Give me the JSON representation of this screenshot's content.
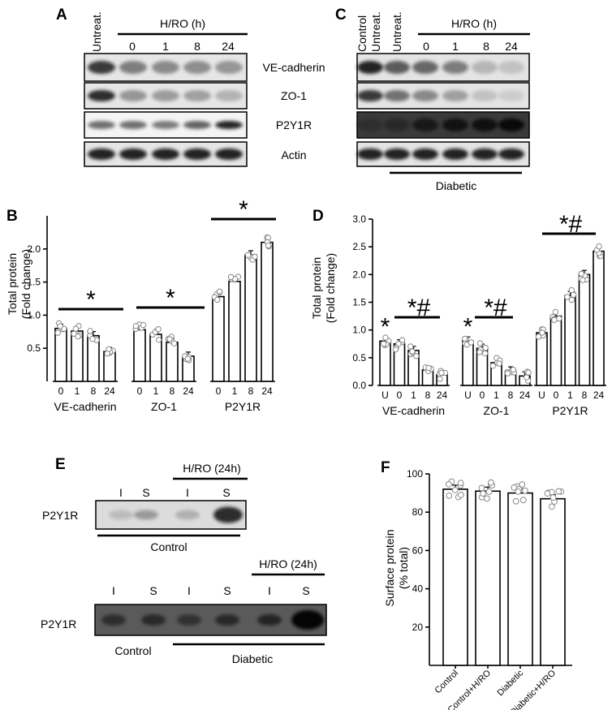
{
  "panels": {
    "A": "A",
    "B": "B",
    "C": "C",
    "D": "D",
    "E": "E",
    "F": "F"
  },
  "blot_A": {
    "lane_untreated": "Untreat.",
    "group_label": "H/RO (h)",
    "times": [
      "0",
      "1",
      "8",
      "24"
    ],
    "rows": [
      "VE-cadherin",
      "ZO-1",
      "P2Y1R",
      "Actin"
    ]
  },
  "blot_C": {
    "lane_control": "Control",
    "lane_untreated_1": "Untreat.",
    "lane_untreated_2": "Untreat.",
    "group_label": "H/RO (h)",
    "times": [
      "0",
      "1",
      "8",
      "24"
    ],
    "bottom_label": "Diabetic"
  },
  "blot_E": {
    "row_label": "P2Y1R",
    "top_group": "H/RO (24h)",
    "top_lanes": [
      "I",
      "S",
      "I",
      "S"
    ],
    "top_underline": "Control",
    "bottom_group": "H/RO (24h)",
    "bottom_lanes": [
      "I",
      "S",
      "I",
      "S",
      "I",
      "S"
    ],
    "bottom_row_label": "P2Y1R",
    "bottom_control": "Control",
    "bottom_diabetic": "Diabetic"
  },
  "chart_data": [
    {
      "panel": "B",
      "type": "bar",
      "ylabel": "Total protein (Fold change)",
      "ylabel_lines": [
        "Total protein",
        "(Fold change)"
      ],
      "ylim": [
        0,
        2.5
      ],
      "yticks": [
        "0.5",
        "1.0",
        "1.5",
        "2.0"
      ],
      "groups": [
        {
          "name": "VE-cadherin",
          "categories": [
            "0",
            "1",
            "8",
            "24"
          ],
          "values": [
            0.8,
            0.76,
            0.69,
            0.45
          ],
          "sig": "*"
        },
        {
          "name": "ZO-1",
          "categories": [
            "0",
            "1",
            "8",
            "24"
          ],
          "values": [
            0.78,
            0.71,
            0.59,
            0.38
          ],
          "sig": "*"
        },
        {
          "name": "P2Y1R",
          "categories": [
            "0",
            "1",
            "8",
            "24"
          ],
          "values": [
            1.28,
            1.51,
            1.91,
            2.1
          ],
          "sig": "*"
        }
      ]
    },
    {
      "panel": "D",
      "type": "bar",
      "ylabel": "Total protein (Fold change)",
      "ylabel_lines": [
        "Total protein",
        "(Fold change)"
      ],
      "ylim": [
        0,
        3.0
      ],
      "yticks": [
        "0.0",
        "0.5",
        "1.0",
        "1.5",
        "2.0",
        "2.5",
        "3.0"
      ],
      "groups": [
        {
          "name": "VE-cadherin",
          "categories": [
            "U",
            "0",
            "1",
            "8",
            "24"
          ],
          "values": [
            0.8,
            0.75,
            0.63,
            0.28,
            0.19
          ],
          "sig": "*#",
          "u_sig": "*"
        },
        {
          "name": "ZO-1",
          "categories": [
            "U",
            "0",
            "1",
            "8",
            "24"
          ],
          "values": [
            0.8,
            0.67,
            0.41,
            0.26,
            0.17
          ],
          "sig": "*#",
          "u_sig": "*"
        },
        {
          "name": "P2Y1R",
          "categories": [
            "U",
            "0",
            "1",
            "8",
            "24"
          ],
          "values": [
            0.95,
            1.25,
            1.62,
            2.0,
            2.42
          ],
          "sig": "*#"
        }
      ]
    },
    {
      "panel": "F",
      "type": "bar",
      "ylabel": "Surface protein (% total)",
      "ylabel_lines": [
        "Surface protein",
        "(% total)"
      ],
      "ylim": [
        0,
        100
      ],
      "yticks": [
        "20",
        "40",
        "60",
        "80",
        "100"
      ],
      "categories": [
        "Control",
        "Control+H/RO",
        "Diabetic",
        "Diabetic+H/RO"
      ],
      "values": [
        92,
        91,
        90,
        87
      ]
    }
  ]
}
